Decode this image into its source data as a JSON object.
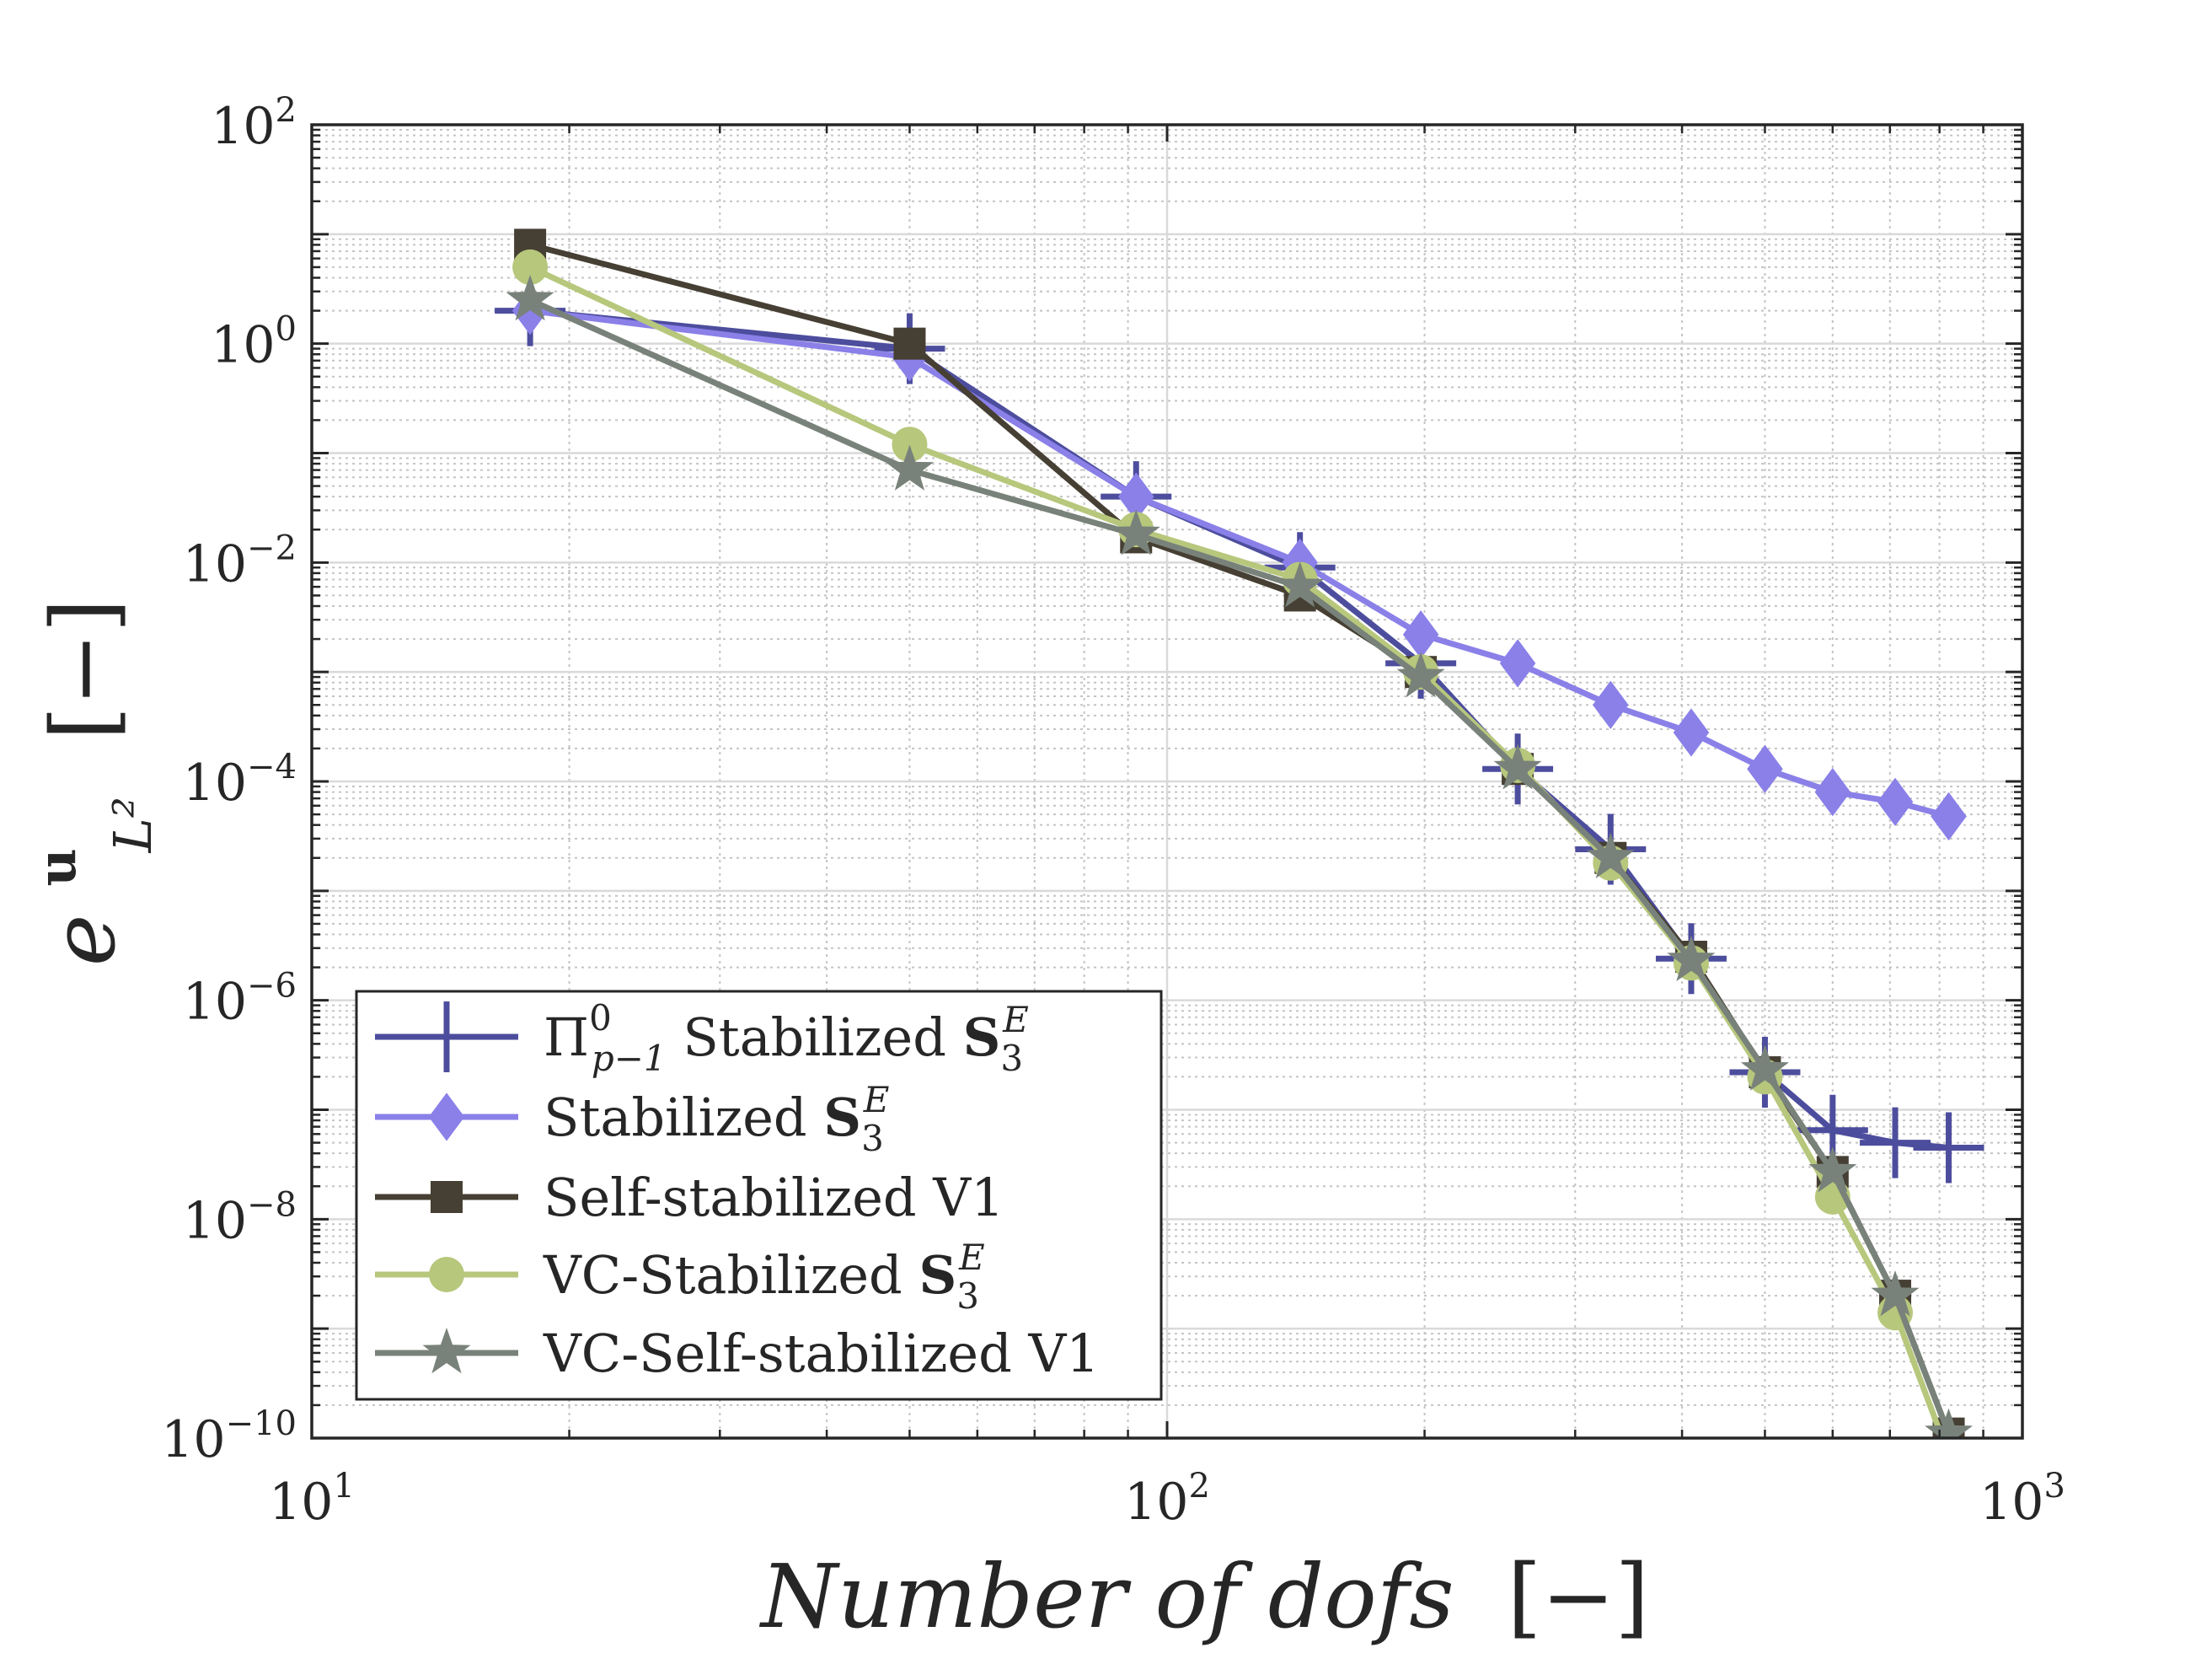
{
  "chart_data": {
    "type": "line",
    "title": "",
    "xlabel": "Number of dofs",
    "xlabel_unit": "[−]",
    "ylabel_symbol": "e",
    "ylabel_superscript": "u",
    "ylabel_subscript": "L²",
    "ylabel_unit": "[−]",
    "xscale": "log",
    "yscale": "log",
    "xlim": [
      10,
      1000
    ],
    "ylim": [
      1e-10,
      100
    ],
    "grid": true,
    "minor_grid": true,
    "legend_position": "bottom-left",
    "x_ticks": [
      {
        "base": "10",
        "exp": "1",
        "value": 10
      },
      {
        "base": "10",
        "exp": "2",
        "value": 100
      },
      {
        "base": "10",
        "exp": "3",
        "value": 1000
      }
    ],
    "y_ticks": [
      {
        "base": "10",
        "exp": "−10",
        "value": 1e-10
      },
      {
        "base": "10",
        "exp": "−8",
        "value": 1e-08
      },
      {
        "base": "10",
        "exp": "−6",
        "value": 1e-06
      },
      {
        "base": "10",
        "exp": "−4",
        "value": 0.0001
      },
      {
        "base": "10",
        "exp": "−2",
        "value": 0.01
      },
      {
        "base": "10",
        "exp": "0",
        "value": 1
      },
      {
        "base": "10",
        "exp": "2",
        "value": 100
      }
    ],
    "series": [
      {
        "name": "Π⁰ₚ₋₁ Stabilized S₃ᴱ",
        "legend": {
          "main": "Π",
          "sup": "0",
          "sub": "p−1",
          "rest": " Stabilized ",
          "bold": "S",
          "bold_sub": "3",
          "bold_sup": "E"
        },
        "color": "#4d4d9e",
        "marker": "plus",
        "x": [
          18,
          50,
          92,
          143,
          198,
          257,
          330,
          410,
          500,
          600,
          710,
          820
        ],
        "y": [
          2.0,
          0.9,
          0.04,
          0.009,
          0.0012,
          0.00013,
          2.4e-05,
          2.4e-06,
          2.2e-07,
          6.5e-08,
          5e-08,
          4.5e-08
        ]
      },
      {
        "name": "Stabilized S₃ᴱ",
        "legend": {
          "main": "",
          "sup": "",
          "sub": "",
          "rest": "Stabilized ",
          "bold": "S",
          "bold_sub": "3",
          "bold_sup": "E"
        },
        "color": "#8a80e8",
        "marker": "diamond",
        "x": [
          18,
          50,
          92,
          143,
          198,
          257,
          330,
          410,
          500,
          600,
          710,
          820
        ],
        "y": [
          2.0,
          0.75,
          0.04,
          0.01,
          0.0022,
          0.0012,
          0.0005,
          0.00028,
          0.00013,
          8e-05,
          6.5e-05,
          4.8e-05
        ]
      },
      {
        "name": "Self-stabilized V1",
        "legend": {
          "main": "",
          "sup": "",
          "sub": "",
          "rest": "Self-stabilized V1",
          "bold": "",
          "bold_sub": "",
          "bold_sup": ""
        },
        "color": "#463f33",
        "marker": "square",
        "x": [
          18,
          50,
          92,
          143,
          198,
          257,
          330,
          410,
          500,
          600,
          710,
          820
        ],
        "y": [
          8.0,
          1.0,
          0.017,
          0.005,
          0.001,
          0.00013,
          2e-05,
          2.5e-06,
          2.2e-07,
          2.7e-08,
          2e-09,
          1.1e-10
        ]
      },
      {
        "name": "VC-Stabilized S₃ᴱ",
        "legend": {
          "main": "",
          "sup": "",
          "sub": "",
          "rest": "VC-Stabilized ",
          "bold": "S",
          "bold_sub": "3",
          "bold_sup": "E"
        },
        "color": "#b7c77c",
        "marker": "circle",
        "x": [
          18,
          50,
          92,
          143,
          198,
          257,
          330,
          410,
          500,
          600,
          710,
          820
        ],
        "y": [
          5.0,
          0.12,
          0.02,
          0.007,
          0.001,
          0.00014,
          1.8e-05,
          2.2e-06,
          2e-07,
          1.6e-08,
          1.4e-09,
          7e-11
        ]
      },
      {
        "name": "VC-Self-stabilized V1",
        "legend": {
          "main": "",
          "sup": "",
          "sub": "",
          "rest": "VC-Self-stabilized V1",
          "bold": "",
          "bold_sub": "",
          "bold_sup": ""
        },
        "color": "#78827a",
        "marker": "star",
        "x": [
          18,
          50,
          92,
          143,
          198,
          257,
          330,
          410,
          500,
          600,
          710,
          820
        ],
        "y": [
          2.5,
          0.07,
          0.018,
          0.006,
          0.0009,
          0.00013,
          2e-05,
          2.3e-06,
          2.3e-07,
          2.7e-08,
          2e-09,
          1.1e-10
        ]
      }
    ]
  }
}
